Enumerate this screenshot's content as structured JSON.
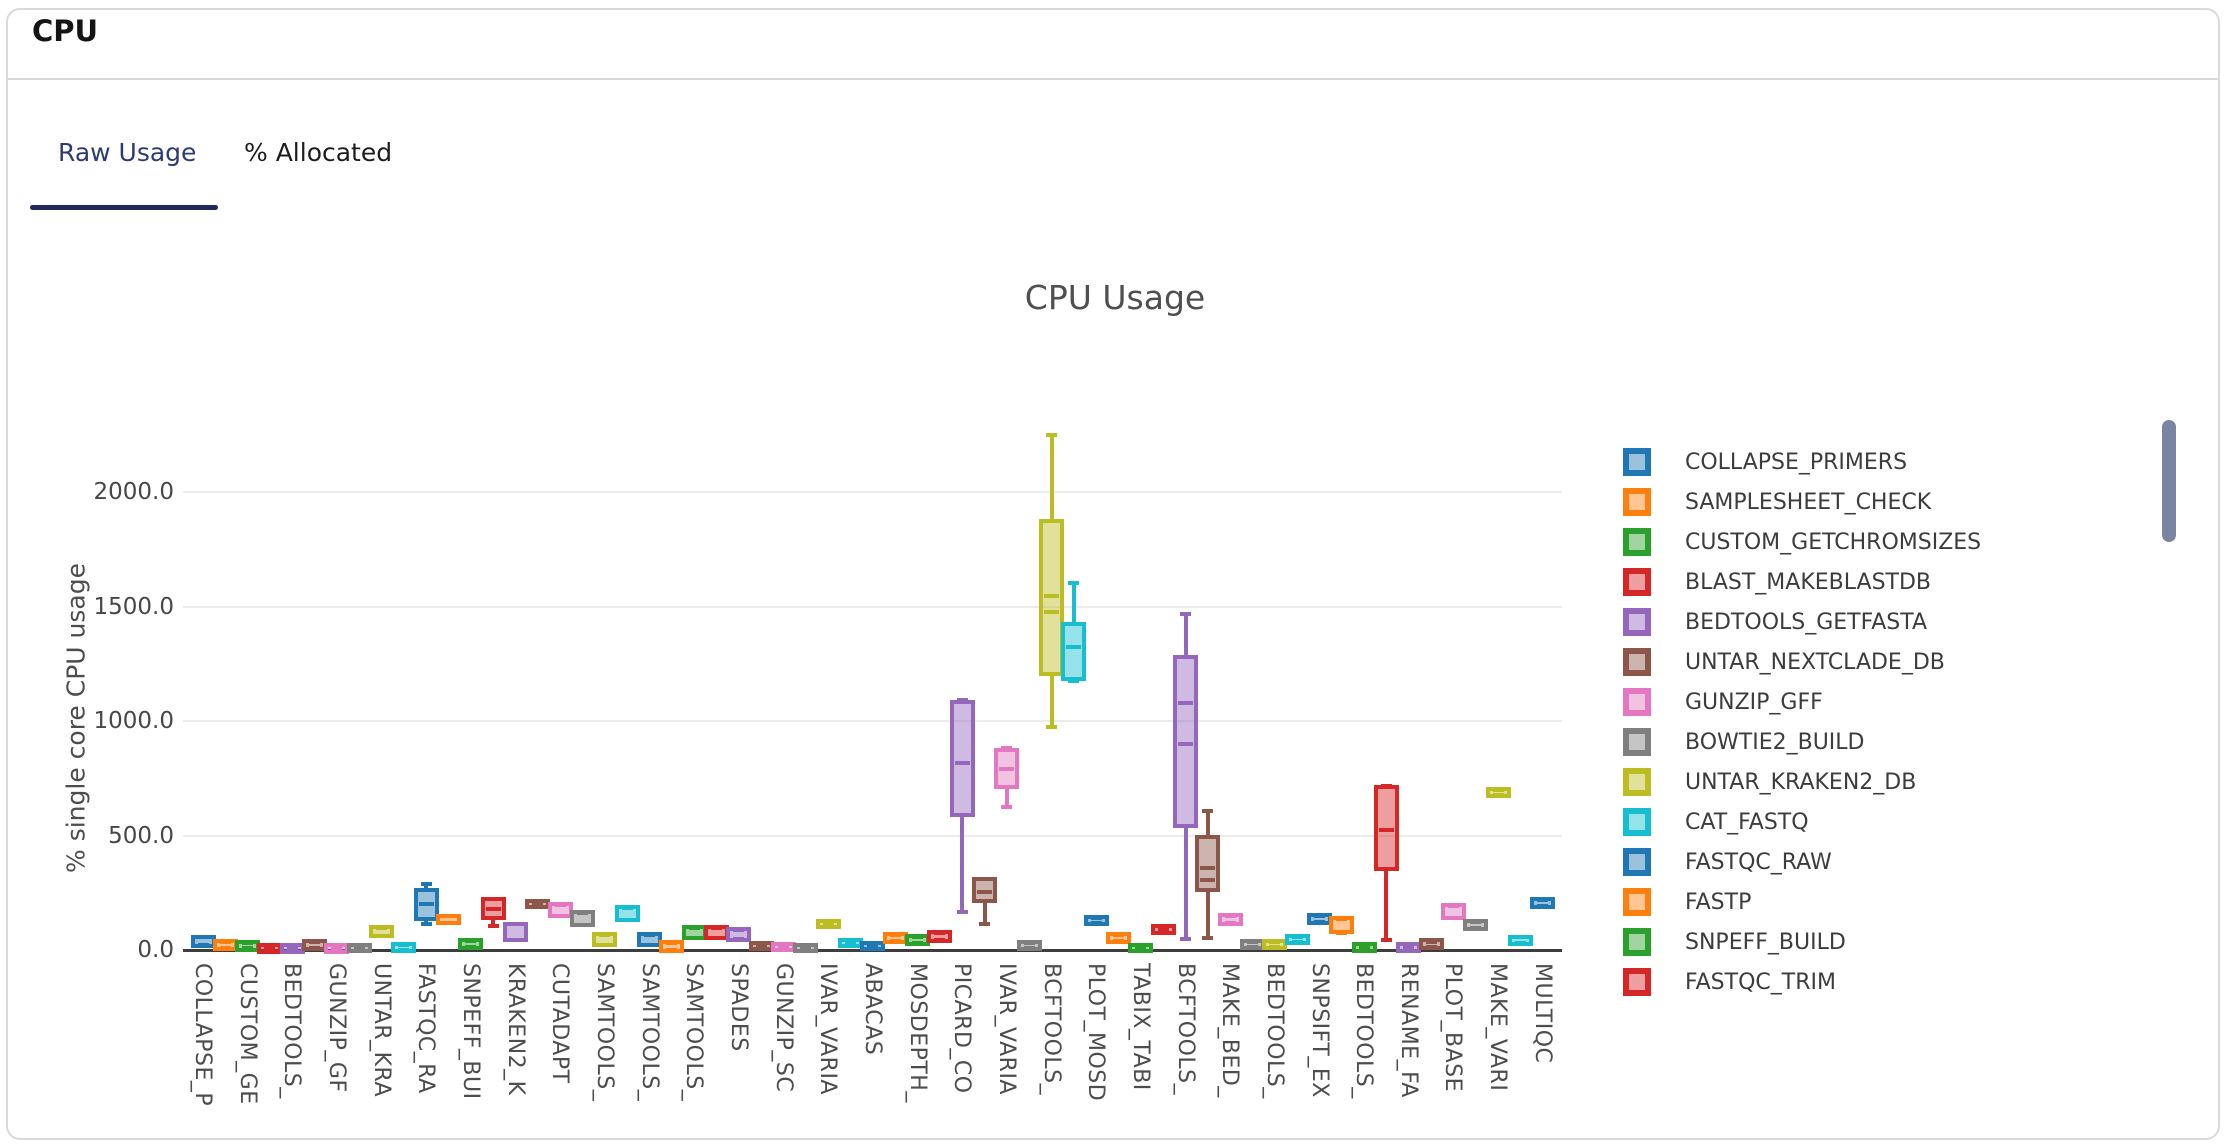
{
  "header": {
    "title": "CPU"
  },
  "tabs": [
    {
      "label": "Raw Usage",
      "active": true
    },
    {
      "label": "% Allocated",
      "active": false
    }
  ],
  "accent_color": "#20295c",
  "scrollbar_color": "#7a86a1",
  "chart_data": {
    "type": "box",
    "title": "CPU Usage",
    "ylabel": "% single core CPU usage",
    "grid": true,
    "legend_position": "right",
    "ylim": [
      0,
      2360
    ],
    "y_ticks": [
      {
        "label": "0.0",
        "value": 0
      },
      {
        "label": "500.0",
        "value": 500
      },
      {
        "label": "1000.0",
        "value": 1000
      },
      {
        "label": "1500.0",
        "value": 1500
      },
      {
        "label": "2000.0",
        "value": 2000
      }
    ],
    "palette": [
      "#1f77b4",
      "#ff7f0e",
      "#2ca02c",
      "#d62728",
      "#9467bd",
      "#8c564b",
      "#e377c2",
      "#7f7f7f",
      "#bcbd22",
      "#17becf"
    ],
    "legend": [
      {
        "label": "COLLAPSE_PRIMERS",
        "c": 0
      },
      {
        "label": "SAMPLESHEET_CHECK",
        "c": 1
      },
      {
        "label": "CUSTOM_GETCHROMSIZES",
        "c": 2
      },
      {
        "label": "BLAST_MAKEBLASTDB",
        "c": 3
      },
      {
        "label": "BEDTOOLS_GETFASTA",
        "c": 4
      },
      {
        "label": "UNTAR_NEXTCLADE_DB",
        "c": 5
      },
      {
        "label": "GUNZIP_GFF",
        "c": 6
      },
      {
        "label": "BOWTIE2_BUILD",
        "c": 7
      },
      {
        "label": "UNTAR_KRAKEN2_DB",
        "c": 8
      },
      {
        "label": "CAT_FASTQ",
        "c": 9
      },
      {
        "label": "FASTQC_RAW",
        "c": 0
      },
      {
        "label": "FASTP",
        "c": 1
      },
      {
        "label": "SNPEFF_BUILD",
        "c": 2
      },
      {
        "label": "FASTQC_TRIM",
        "c": 3
      }
    ],
    "boxes": [
      {
        "label": "COLLAPSE_P",
        "c": 0,
        "lo": 20,
        "q1": 25,
        "med": 38,
        "q3": 50,
        "hi": 55
      },
      {
        "c": 1,
        "lo": 8,
        "q1": 12,
        "med": 20,
        "q3": 30,
        "hi": 33
      },
      {
        "label": "CUSTOM_GE",
        "c": 2,
        "lo": 8,
        "q1": 10,
        "med": 18,
        "q3": 27,
        "hi": 30
      },
      {
        "c": 3,
        "lo": 0,
        "q1": 2,
        "med": 7,
        "q3": 12,
        "hi": 14
      },
      {
        "label": "BEDTOOLS_",
        "c": 4,
        "lo": 0,
        "q1": 2,
        "med": 7,
        "q3": 12,
        "hi": 14
      },
      {
        "c": 5,
        "lo": 10,
        "q1": 14,
        "med": 22,
        "q3": 32,
        "hi": 36
      },
      {
        "label": "GUNZIP_GF",
        "c": 6,
        "lo": 0,
        "q1": 2,
        "med": 7,
        "q3": 12,
        "hi": 14
      },
      {
        "c": 7,
        "lo": 2,
        "q1": 4,
        "med": 9,
        "q3": 15,
        "hi": 18
      },
      {
        "label": "UNTAR_KRA",
        "c": 8,
        "lo": 63,
        "q1": 70,
        "med": 80,
        "q3": 90,
        "hi": 97
      },
      {
        "c": 9,
        "lo": 2,
        "q1": 5,
        "med": 11,
        "q3": 17,
        "hi": 20
      },
      {
        "label": "FASTQC_RA",
        "c": 0,
        "lo": 112,
        "q1": 146,
        "med": 199,
        "q3": 252,
        "hi": 287
      },
      {
        "c": 1,
        "lo": 118,
        "q1": 126,
        "med": 133,
        "q3": 140,
        "hi": 148
      },
      {
        "label": "SNPEFF_BUI",
        "c": 2,
        "lo": 12,
        "q1": 17,
        "med": 26,
        "q3": 35,
        "hi": 40
      },
      {
        "c": 3,
        "lo": 104,
        "q1": 148,
        "med": 178,
        "q3": 213,
        "hi": 222
      },
      {
        "label": "KRAKEN2_K",
        "c": 4,
        "lo": 42,
        "q1": 52,
        "med": 82,
        "q3": 104,
        "hi": 112
      },
      {
        "c": 5,
        "lo": 192,
        "q1": 196,
        "med": 201,
        "q3": 206,
        "hi": 210
      },
      {
        "label": "CUTADAPT",
        "c": 6,
        "lo": 148,
        "q1": 157,
        "med": 174,
        "q3": 191,
        "hi": 198
      },
      {
        "c": 7,
        "lo": 110,
        "q1": 117,
        "med": 137,
        "q3": 157,
        "hi": 163
      },
      {
        "label": "SAMTOOLS_",
        "c": 8,
        "lo": 24,
        "q1": 30,
        "med": 45,
        "q3": 61,
        "hi": 66
      },
      {
        "c": 9,
        "lo": 132,
        "q1": 139,
        "med": 158,
        "q3": 178,
        "hi": 184
      },
      {
        "label": "SAMTOOLS_",
        "c": 0,
        "lo": 24,
        "q1": 30,
        "med": 45,
        "q3": 61,
        "hi": 66
      },
      {
        "c": 1,
        "lo": 0,
        "q1": 4,
        "med": 16,
        "q3": 28,
        "hi": 32
      },
      {
        "label": "SAMTOOLS_",
        "c": 2,
        "lo": 54,
        "q1": 61,
        "med": 76,
        "q3": 91,
        "hi": 97
      },
      {
        "c": 3,
        "lo": 54,
        "q1": 61,
        "med": 76,
        "q3": 91,
        "hi": 97
      },
      {
        "label": "SPADES",
        "c": 4,
        "lo": 46,
        "q1": 52,
        "med": 67,
        "q3": 83,
        "hi": 89
      },
      {
        "c": 5,
        "lo": 9,
        "q1": 12,
        "med": 17,
        "q3": 22,
        "hi": 25
      },
      {
        "label": "GUNZIP_SC",
        "c": 6,
        "lo": 5,
        "q1": 8,
        "med": 13,
        "q3": 18,
        "hi": 21
      },
      {
        "c": 7,
        "lo": 2,
        "q1": 4,
        "med": 9,
        "q3": 13,
        "hi": 16
      },
      {
        "label": "IVAR_VARIA",
        "c": 8,
        "lo": 104,
        "q1": 108,
        "med": 114,
        "q3": 120,
        "hi": 124
      },
      {
        "c": 9,
        "lo": 20,
        "q1": 24,
        "med": 30,
        "q3": 37,
        "hi": 41
      },
      {
        "label": "ABACAS",
        "c": 0,
        "lo": 9,
        "q1": 12,
        "med": 17,
        "q3": 22,
        "hi": 25
      },
      {
        "c": 1,
        "lo": 38,
        "q1": 44,
        "med": 52,
        "q3": 60,
        "hi": 65
      },
      {
        "label": "MOSDEPTH_",
        "c": 2,
        "lo": 31,
        "q1": 36,
        "med": 44,
        "q3": 52,
        "hi": 57
      },
      {
        "c": 3,
        "lo": 42,
        "q1": 48,
        "med": 59,
        "q3": 70,
        "hi": 76
      },
      {
        "label": "PICARD_CO",
        "c": 4,
        "lo": 165,
        "q1": 600,
        "med": 815,
        "q3": 1075,
        "hi": 1090
      },
      {
        "c": 5,
        "lo": 113,
        "q1": 222,
        "med": 255,
        "q3": 300,
        "hi": 309
      },
      {
        "label": "IVAR_VARIA",
        "c": 6,
        "lo": 626,
        "q1": 722,
        "med": 791,
        "q3": 865,
        "hi": 883
      },
      {
        "c": 7,
        "lo": 10,
        "q1": 14,
        "med": 21,
        "q3": 28,
        "hi": 32
      },
      {
        "label": "BCFTOOLS_",
        "c": 8,
        "lo": 972,
        "q1": 1212,
        "med": 1478,
        "med2": 1544,
        "q3": 1866,
        "hi": 2250
      },
      {
        "c": 9,
        "lo": 1173,
        "q1": 1190,
        "med": 1321,
        "q3": 1413,
        "hi": 1604
      },
      {
        "label": "PLOT_MOSD",
        "c": 0,
        "lo": 118,
        "q1": 122,
        "med": 129,
        "q3": 136,
        "hi": 140
      },
      {
        "c": 1,
        "lo": 38,
        "q1": 44,
        "med": 53,
        "q3": 62,
        "hi": 67
      },
      {
        "label": "TABIX_TABI",
        "c": 2,
        "lo": 2,
        "q1": 4,
        "med": 8,
        "q3": 13,
        "hi": 16
      },
      {
        "c": 3,
        "lo": 82,
        "q1": 85,
        "med": 90,
        "q3": 96,
        "hi": 99
      },
      {
        "label": "BCFTOOLS_",
        "c": 4,
        "lo": 48,
        "q1": 548,
        "med": 900,
        "med2": 1078,
        "q3": 1270,
        "hi": 1466
      },
      {
        "c": 5,
        "lo": 52,
        "q1": 270,
        "med": 304,
        "med2": 357,
        "q3": 483,
        "hi": 605
      },
      {
        "label": "MAKE_BED_",
        "c": 6,
        "lo": 118,
        "q1": 124,
        "med": 134,
        "q3": 145,
        "hi": 150
      },
      {
        "c": 7,
        "lo": 14,
        "q1": 18,
        "med": 25,
        "q3": 32,
        "hi": 36
      },
      {
        "label": "BEDTOOLS_",
        "c": 8,
        "lo": 14,
        "q1": 18,
        "med": 25,
        "q3": 32,
        "hi": 36
      },
      {
        "c": 9,
        "lo": 33,
        "q1": 38,
        "med": 45,
        "q3": 53,
        "hi": 58
      },
      {
        "label": "SNPSIFT_EX",
        "c": 0,
        "lo": 123,
        "q1": 128,
        "med": 135,
        "q3": 142,
        "hi": 147
      },
      {
        "c": 1,
        "lo": 74,
        "q1": 87,
        "med": 108,
        "q3": 130,
        "hi": 136
      },
      {
        "label": "BEDTOOLS_",
        "c": 2,
        "lo": 3,
        "q1": 6,
        "med": 11,
        "q3": 16,
        "hi": 19
      },
      {
        "c": 3,
        "lo": 43,
        "q1": 361,
        "med": 522,
        "q3": 704,
        "hi": 717
      },
      {
        "label": "RENAME_FA",
        "c": 4,
        "lo": 3,
        "q1": 6,
        "med": 11,
        "q3": 16,
        "hi": 19
      },
      {
        "c": 5,
        "lo": 15,
        "q1": 19,
        "med": 26,
        "q3": 33,
        "hi": 37
      },
      {
        "label": "PLOT_BASE",
        "c": 6,
        "lo": 140,
        "q1": 148,
        "med": 167,
        "q3": 187,
        "hi": 193
      },
      {
        "c": 7,
        "lo": 95,
        "q1": 100,
        "med": 108,
        "q3": 117,
        "hi": 122
      },
      {
        "label": "MAKE_VARI",
        "c": 8,
        "lo": 676,
        "q1": 680,
        "med": 687,
        "q3": 694,
        "hi": 698
      },
      {
        "c": 9,
        "lo": 31,
        "q1": 36,
        "med": 43,
        "q3": 50,
        "hi": 55
      },
      {
        "label": "MULTIQC",
        "c": 0,
        "lo": 190,
        "q1": 196,
        "med": 204,
        "q3": 212,
        "hi": 218
      }
    ]
  }
}
